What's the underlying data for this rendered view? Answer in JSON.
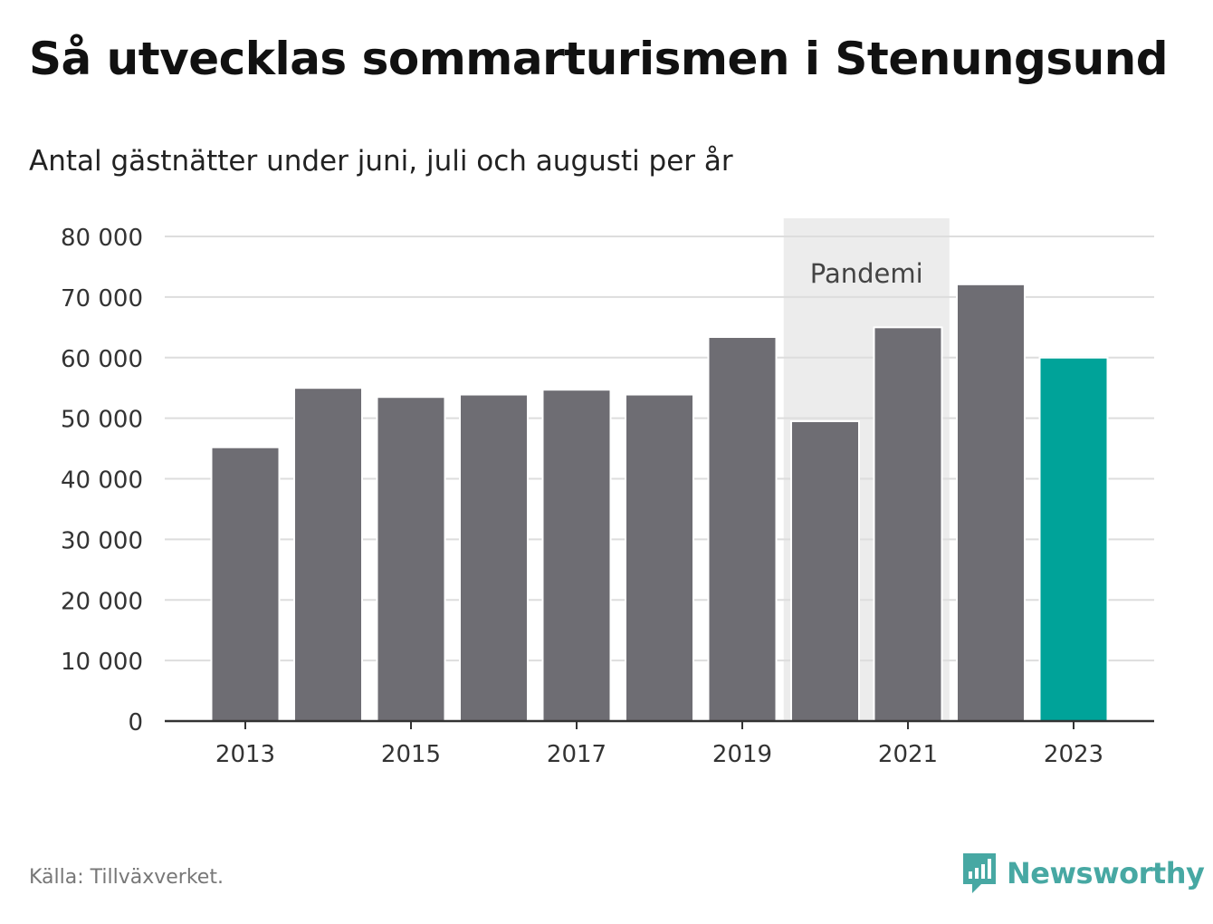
{
  "header": {
    "title": "Så utvecklas sommarturismen i Stenungsund",
    "subtitle": "Antal gästnätter under juni, juli och augusti per år"
  },
  "footer": {
    "source": "Källa: Tillväxverket.",
    "brand": "Newsworthy",
    "brand_icon": "bar-chart-speech-bubble-icon"
  },
  "colors": {
    "bar": "#6e6d73",
    "highlight": "#00a399",
    "shade": "#ececec",
    "grid": "#dddddd",
    "axis": "#333333",
    "brand": "#47a8a3"
  },
  "chart_data": {
    "type": "bar",
    "title": "Så utvecklas sommarturismen i Stenungsund",
    "subtitle": "Antal gästnätter under juni, juli och augusti per år",
    "categories": [
      "2013",
      "2014",
      "2015",
      "2016",
      "2017",
      "2018",
      "2019",
      "2020",
      "2021",
      "2022",
      "2023"
    ],
    "values": [
      45200,
      55000,
      53500,
      53900,
      54700,
      53900,
      63400,
      49500,
      65000,
      72100,
      60000
    ],
    "highlight_index": 10,
    "x_tick_labels": [
      "2013",
      "2015",
      "2017",
      "2019",
      "2021",
      "2023"
    ],
    "y_ticks": [
      0,
      10000,
      20000,
      30000,
      40000,
      50000,
      60000,
      70000,
      80000
    ],
    "y_tick_labels": [
      "0",
      "10 000",
      "20 000",
      "30 000",
      "40 000",
      "50 000",
      "60 000",
      "70 000",
      "80 000"
    ],
    "ylim": [
      0,
      80000
    ],
    "grid": true,
    "annotation": {
      "label": "Pandemi",
      "from": "2020",
      "to": "2021"
    }
  }
}
